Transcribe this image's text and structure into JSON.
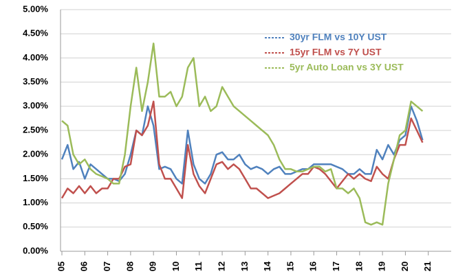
{
  "chart_data": {
    "type": "line",
    "x": [
      5,
      5.25,
      5.5,
      5.75,
      6,
      6.25,
      6.5,
      6.75,
      7,
      7.25,
      7.5,
      7.75,
      8,
      8.25,
      8.5,
      8.75,
      9,
      9.25,
      9.5,
      9.75,
      10,
      10.25,
      10.5,
      10.75,
      11,
      11.25,
      11.5,
      11.75,
      12,
      12.25,
      12.5,
      12.75,
      13,
      13.25,
      13.5,
      13.75,
      14,
      14.25,
      14.5,
      14.75,
      15,
      15.25,
      15.5,
      15.75,
      16,
      16.25,
      16.5,
      16.75,
      17,
      17.25,
      17.5,
      17.75,
      18,
      18.25,
      18.5,
      18.75,
      19,
      19.25,
      19.5,
      19.75,
      20,
      20.25,
      20.5,
      20.75
    ],
    "series": [
      {
        "name": "30yr FLM vs 10Y UST",
        "color": "#4f81bd",
        "values": [
          1.9,
          2.2,
          1.7,
          1.85,
          1.5,
          1.8,
          1.7,
          1.6,
          1.5,
          1.5,
          1.45,
          1.6,
          2.0,
          2.5,
          2.4,
          3.0,
          2.6,
          1.7,
          1.75,
          1.7,
          1.5,
          1.4,
          2.5,
          1.8,
          1.5,
          1.4,
          1.6,
          2.0,
          2.05,
          1.9,
          1.9,
          2.0,
          1.8,
          1.7,
          1.75,
          1.7,
          1.6,
          1.7,
          1.75,
          1.6,
          1.6,
          1.65,
          1.7,
          1.7,
          1.8,
          1.8,
          1.8,
          1.8,
          1.75,
          1.7,
          1.6,
          1.6,
          1.7,
          1.6,
          1.6,
          2.1,
          1.9,
          2.2,
          2.0,
          2.3,
          2.4,
          3.0,
          2.7,
          2.3
        ]
      },
      {
        "name": "15yr FLM vs 7Y UST",
        "color": "#c0504d",
        "values": [
          1.1,
          1.3,
          1.2,
          1.35,
          1.2,
          1.35,
          1.2,
          1.3,
          1.3,
          1.5,
          1.5,
          1.75,
          1.8,
          2.5,
          2.4,
          2.6,
          3.1,
          1.8,
          1.5,
          1.5,
          1.3,
          1.1,
          2.2,
          1.6,
          1.35,
          1.2,
          1.5,
          1.8,
          1.85,
          1.7,
          1.8,
          1.7,
          1.5,
          1.3,
          1.3,
          1.2,
          1.1,
          1.15,
          1.2,
          1.3,
          1.4,
          1.5,
          1.6,
          1.6,
          1.75,
          1.7,
          1.6,
          1.45,
          1.3,
          1.45,
          1.6,
          1.5,
          1.6,
          1.5,
          1.45,
          1.75,
          1.6,
          1.5,
          1.9,
          2.2,
          2.2,
          2.75,
          2.5,
          2.25
        ]
      },
      {
        "name": "5yr Auto Loan vs 3Y UST",
        "color": "#9bbb59",
        "values": [
          2.7,
          2.6,
          2.0,
          1.8,
          1.9,
          1.7,
          1.6,
          1.55,
          1.5,
          1.4,
          1.4,
          2.0,
          3.0,
          3.8,
          2.9,
          3.5,
          4.3,
          3.2,
          3.2,
          3.3,
          3.0,
          3.2,
          3.8,
          4.0,
          3.0,
          3.2,
          2.9,
          3.0,
          3.4,
          3.2,
          3.0,
          2.9,
          2.8,
          2.7,
          2.6,
          2.5,
          2.4,
          2.2,
          1.9,
          1.7,
          1.7,
          1.65,
          1.65,
          1.7,
          1.75,
          1.75,
          1.65,
          1.7,
          1.3,
          1.3,
          1.2,
          1.3,
          1.1,
          0.6,
          0.55,
          0.6,
          0.55,
          1.4,
          1.9,
          2.4,
          2.5,
          3.1,
          3.0,
          2.9
        ]
      }
    ],
    "xlim": [
      5,
      22
    ],
    "xticks": [
      {
        "value": 5,
        "label": "05"
      },
      {
        "value": 6,
        "label": "06"
      },
      {
        "value": 7,
        "label": "07"
      },
      {
        "value": 8,
        "label": "08"
      },
      {
        "value": 9,
        "label": "09"
      },
      10,
      11,
      12,
      13,
      14,
      15,
      16,
      17,
      18,
      19,
      20,
      21
    ],
    "ylim": [
      0,
      5
    ],
    "yticks": [
      {
        "value": 0,
        "label": "0.00%"
      },
      {
        "value": 0.5,
        "label": "0.50%"
      },
      {
        "value": 1,
        "label": "1.00%"
      },
      {
        "value": 1.5,
        "label": "1.50%"
      },
      {
        "value": 2,
        "label": "2.00%"
      },
      {
        "value": 2.5,
        "label": "2.50%"
      },
      {
        "value": 3,
        "label": "3.00%"
      },
      {
        "value": 3.5,
        "label": "3.50%"
      },
      {
        "value": 4,
        "label": "4.00%"
      },
      {
        "value": 4.5,
        "label": "4.50%"
      },
      {
        "value": 5,
        "label": "5.00%"
      }
    ],
    "grid": true,
    "legend": "upper right"
  }
}
